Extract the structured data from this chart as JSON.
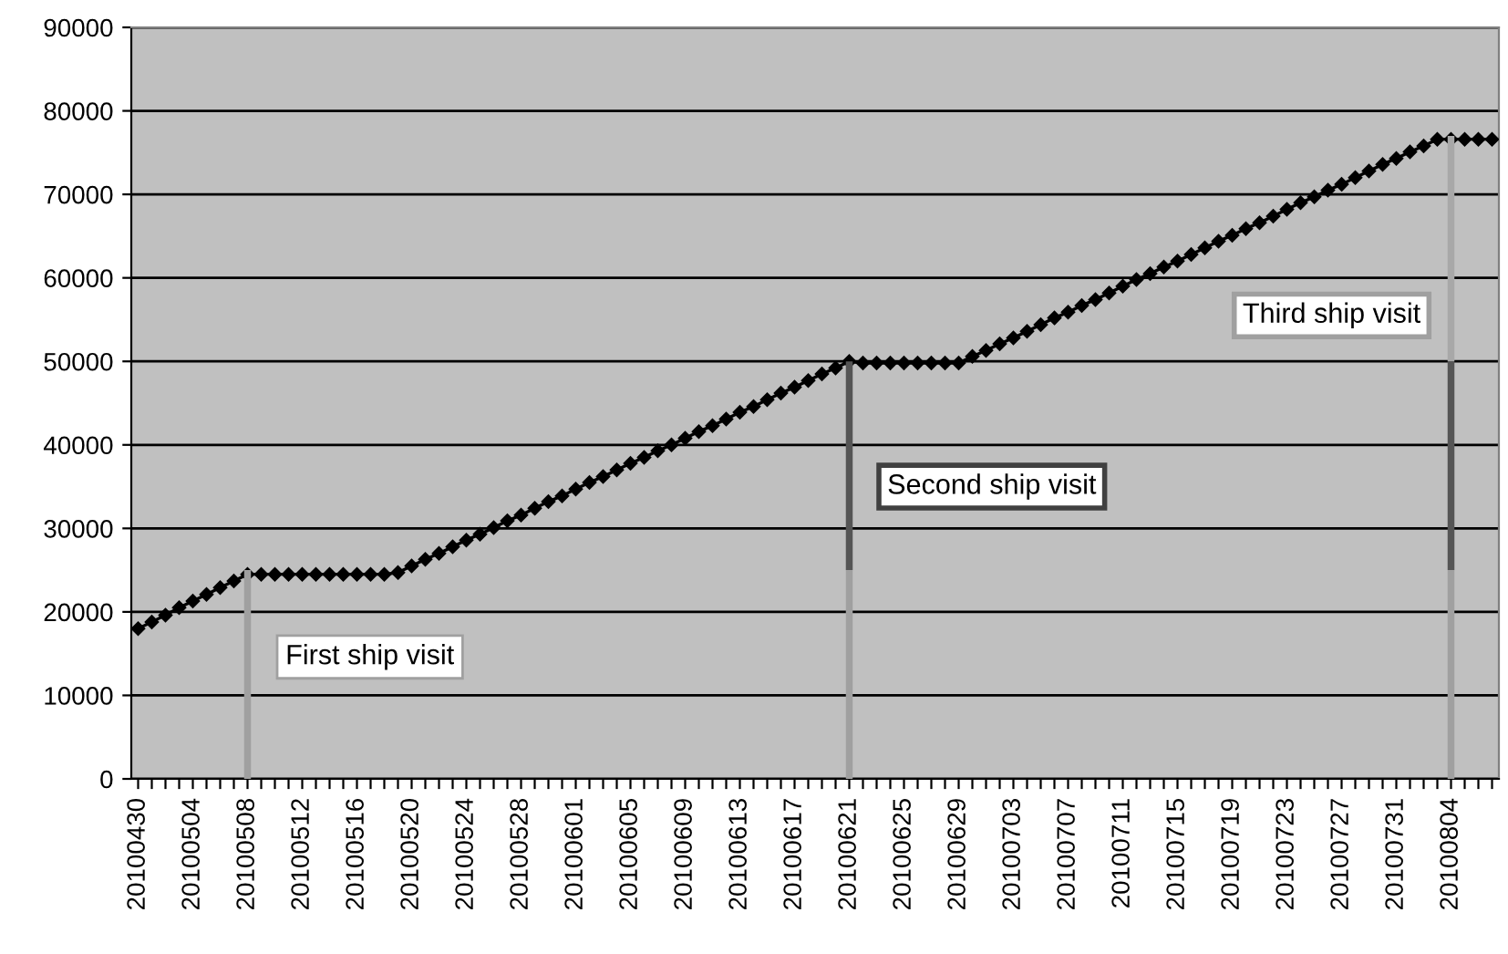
{
  "chart_data": {
    "type": "line",
    "categories": [
      "20100430",
      null,
      null,
      null,
      "20100504",
      null,
      null,
      null,
      "20100508",
      null,
      null,
      null,
      "20100512",
      null,
      null,
      null,
      "20100516",
      null,
      null,
      null,
      "20100520",
      null,
      null,
      null,
      "20100524",
      null,
      null,
      null,
      "20100528",
      null,
      null,
      null,
      "20100601",
      null,
      null,
      null,
      "20100605",
      null,
      null,
      null,
      "20100609",
      null,
      null,
      null,
      "20100613",
      null,
      null,
      null,
      "20100617",
      null,
      null,
      null,
      "20100621",
      null,
      null,
      null,
      "20100625",
      null,
      null,
      null,
      "20100629",
      null,
      null,
      null,
      "20100703",
      null,
      null,
      null,
      "20100707",
      null,
      null,
      null,
      "20100711",
      null,
      null,
      null,
      "20100715",
      null,
      null,
      null,
      "20100719",
      null,
      null,
      null,
      "20100723",
      null,
      null,
      null,
      "20100727",
      null,
      null,
      null,
      "20100731",
      null,
      null,
      null,
      "20100804",
      null,
      null,
      null
    ],
    "series": [
      {
        "type": "bar",
        "color": "#a0a0a0",
        "values": [
          null,
          null,
          null,
          null,
          null,
          null,
          null,
          null,
          25000,
          null,
          null,
          null,
          null,
          null,
          null,
          null,
          null,
          null,
          null,
          null,
          null,
          null,
          null,
          null,
          null,
          null,
          null,
          null,
          null,
          null,
          null,
          null,
          null,
          null,
          null,
          null,
          null,
          null,
          null,
          null,
          null,
          null,
          null,
          null,
          null,
          null,
          null,
          null,
          null,
          null,
          null,
          null,
          25000,
          null,
          null,
          null,
          null,
          null,
          null,
          null,
          null,
          null,
          null,
          null,
          null,
          null,
          null,
          null,
          null,
          null,
          null,
          null,
          null,
          null,
          null,
          null,
          null,
          null,
          null,
          null,
          null,
          null,
          null,
          null,
          null,
          null,
          null,
          null,
          null,
          null,
          null,
          null,
          null,
          null,
          null,
          null,
          25000,
          null,
          null,
          null
        ]
      },
      {
        "type": "bar",
        "color": "#555555",
        "values": [
          null,
          null,
          null,
          null,
          null,
          null,
          null,
          null,
          null,
          null,
          null,
          null,
          null,
          null,
          null,
          null,
          null,
          null,
          null,
          null,
          null,
          null,
          null,
          null,
          null,
          null,
          null,
          null,
          null,
          null,
          null,
          null,
          null,
          null,
          null,
          null,
          null,
          null,
          null,
          null,
          null,
          null,
          null,
          null,
          null,
          null,
          null,
          null,
          null,
          null,
          null,
          null,
          25000,
          null,
          null,
          null,
          null,
          null,
          null,
          null,
          null,
          null,
          null,
          null,
          null,
          null,
          null,
          null,
          null,
          null,
          null,
          null,
          null,
          null,
          null,
          null,
          null,
          null,
          null,
          null,
          null,
          null,
          null,
          null,
          null,
          null,
          null,
          null,
          null,
          null,
          null,
          null,
          null,
          null,
          null,
          null,
          25000,
          null,
          null,
          null
        ]
      },
      {
        "type": "bar",
        "color": "#a8a8a8",
        "values": [
          null,
          null,
          null,
          null,
          null,
          null,
          null,
          null,
          null,
          null,
          null,
          null,
          null,
          null,
          null,
          null,
          null,
          null,
          null,
          null,
          null,
          null,
          null,
          null,
          null,
          null,
          null,
          null,
          null,
          null,
          null,
          null,
          null,
          null,
          null,
          null,
          null,
          null,
          null,
          null,
          null,
          null,
          null,
          null,
          null,
          null,
          null,
          null,
          null,
          null,
          null,
          null,
          null,
          null,
          null,
          null,
          null,
          null,
          null,
          null,
          null,
          null,
          null,
          null,
          null,
          null,
          null,
          null,
          null,
          null,
          null,
          null,
          null,
          null,
          null,
          null,
          null,
          null,
          null,
          null,
          null,
          null,
          null,
          null,
          null,
          null,
          null,
          null,
          null,
          null,
          null,
          null,
          null,
          null,
          null,
          null,
          27000,
          null,
          null,
          null
        ]
      },
      {
        "color": "#000000",
        "values": [
          18000,
          18800,
          19600,
          20500,
          21300,
          22100,
          22900,
          23700,
          24500,
          24500,
          24500,
          24500,
          24500,
          24500,
          24500,
          24500,
          24500,
          24500,
          24500,
          24700,
          25500,
          26300,
          27000,
          27800,
          28600,
          29300,
          30100,
          30900,
          31600,
          32400,
          33200,
          33900,
          34700,
          35500,
          36200,
          37000,
          37800,
          38500,
          39300,
          40000,
          40800,
          41600,
          42300,
          43100,
          43900,
          44600,
          45400,
          46200,
          46900,
          47700,
          48500,
          49200,
          50000,
          49800,
          49800,
          49800,
          49800,
          49800,
          49800,
          49800,
          49800,
          50600,
          51300,
          52100,
          52800,
          53600,
          54400,
          55200,
          55900,
          56700,
          57400,
          58200,
          59000,
          59800,
          60500,
          61300,
          62000,
          62800,
          63600,
          64400,
          65100,
          65900,
          66600,
          67400,
          68200,
          69000,
          69700,
          70500,
          71200,
          72000,
          72800,
          73600,
          74300,
          75100,
          75800,
          76600,
          76600,
          76600,
          76600,
          76600
        ]
      }
    ],
    "stacked": true,
    "marker": "diamond",
    "line_style": "solid",
    "ylim": [
      0,
      90000
    ],
    "yticks": [
      0,
      10000,
      20000,
      30000,
      40000,
      50000,
      60000,
      70000,
      80000,
      90000
    ],
    "grid": "y",
    "legend": false,
    "annotations": [
      {
        "text": "First ship visit",
        "x": "20100508",
        "y": 14600
      },
      {
        "text": "Second ship visit",
        "x": "20100621",
        "y": 35000
      },
      {
        "text": "Third ship visit",
        "x": "20100804",
        "y": 55500
      }
    ]
  }
}
